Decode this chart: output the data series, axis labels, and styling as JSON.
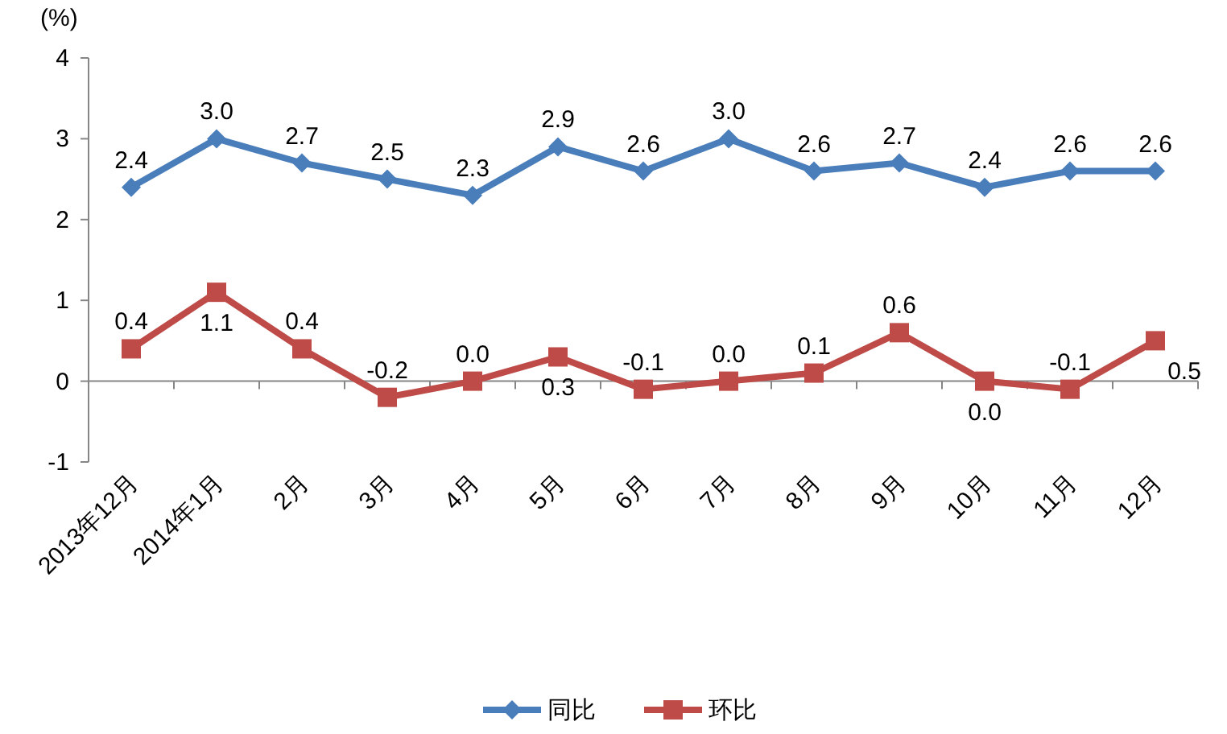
{
  "chart_data": {
    "type": "line",
    "ylabel": "(%)",
    "categories": [
      "2013年12月",
      "2014年1月",
      "2月",
      "3月",
      "4月",
      "5月",
      "6月",
      "7月",
      "8月",
      "9月",
      "10月",
      "11月",
      "12月"
    ],
    "series": [
      {
        "name": "同比",
        "color": "#4a7ebb",
        "marker": "diamond",
        "values": [
          2.4,
          3.0,
          2.7,
          2.5,
          2.3,
          2.9,
          2.6,
          3.0,
          2.6,
          2.7,
          2.4,
          2.6,
          2.6
        ],
        "value_labels": [
          "2.4",
          "3.0",
          "2.7",
          "2.5",
          "2.3",
          "2.9",
          "2.6",
          "3.0",
          "2.6",
          "2.7",
          "2.4",
          "2.6",
          "2.6"
        ]
      },
      {
        "name": "环比",
        "color": "#be4b48",
        "marker": "square",
        "values": [
          0.4,
          1.1,
          0.4,
          -0.2,
          0.0,
          0.3,
          -0.1,
          0.0,
          0.1,
          0.6,
          0.0,
          -0.1,
          0.5
        ],
        "value_labels": [
          "0.4",
          "1.1",
          "0.4",
          "-0.2",
          "0.0",
          "0.3",
          "-0.1",
          "0.0",
          "0.1",
          "0.6",
          "0.0",
          "-0.1",
          "0.5"
        ]
      }
    ],
    "ylim": [
      -1,
      4
    ],
    "yticks": [
      -1,
      0,
      1,
      2,
      3,
      4
    ],
    "legend": "bottom",
    "line_style": "solid"
  }
}
